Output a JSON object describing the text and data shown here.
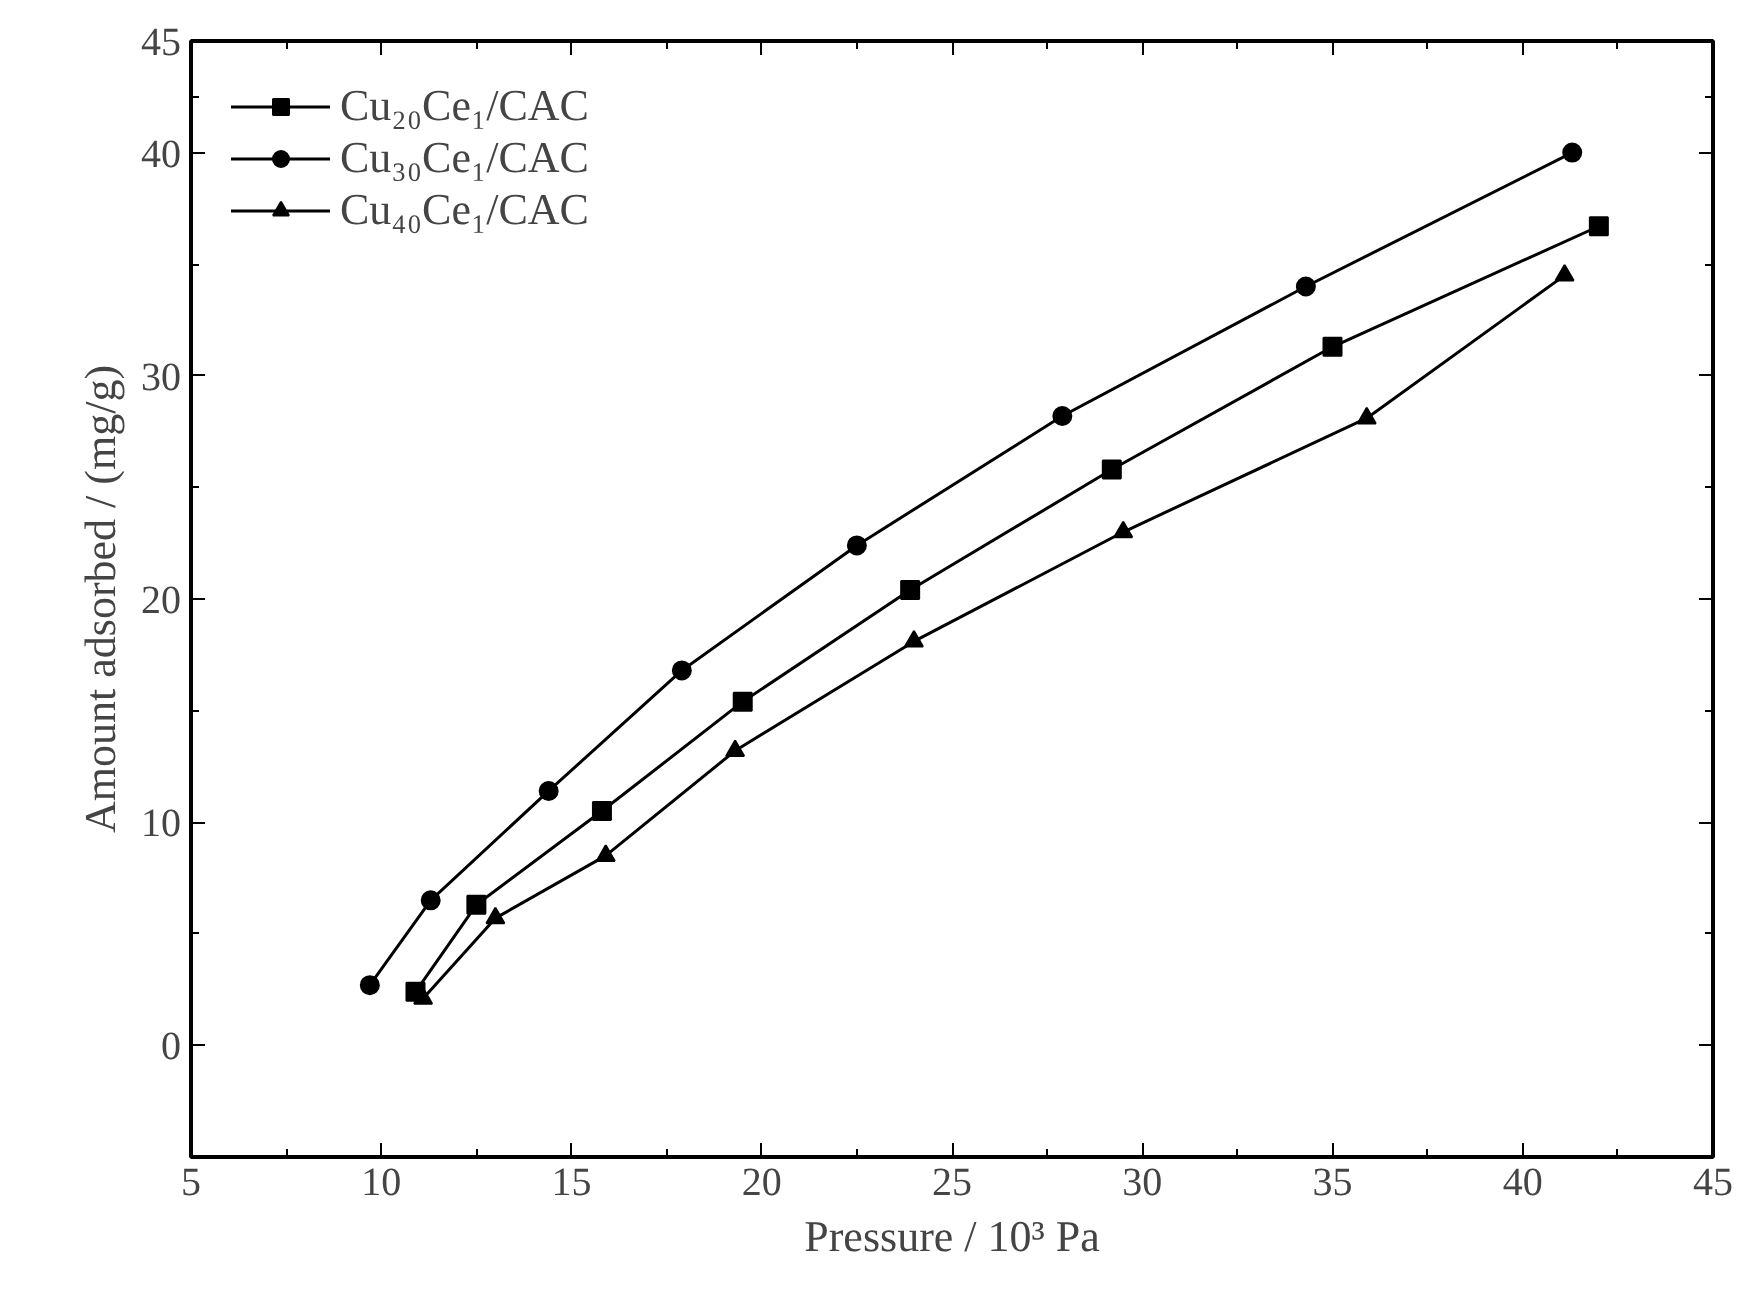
{
  "chart_data": {
    "type": "line",
    "xlabel": "Pressure / 10³ Pa",
    "ylabel": "Amount adsorbed / (mg/g)",
    "xlim": [
      5,
      45
    ],
    "xticks": [
      5,
      10,
      15,
      20,
      25,
      30,
      35,
      40,
      45
    ],
    "ylim": [
      -5,
      45
    ],
    "yticks": [
      0,
      10,
      20,
      30,
      40,
      45
    ],
    "grid": false,
    "legend": "top left",
    "series": [
      {
        "name": "Cu₂₀Ce₁/CAC",
        "color": "#000000",
        "marker": "square",
        "x": [
          10.9,
          12.5,
          15.8,
          19.5,
          23.9,
          29.2,
          35.0,
          42.0
        ],
        "values": [
          2.4,
          6.3,
          10.5,
          15.4,
          20.4,
          25.8,
          31.3,
          36.7
        ]
      },
      {
        "name": "Cu₃₀Ce₁/CAC",
        "color": "#000000",
        "marker": "circle",
        "x": [
          9.7,
          11.3,
          14.4,
          17.9,
          22.5,
          27.9,
          34.3,
          41.3
        ],
        "values": [
          2.7,
          6.5,
          11.4,
          16.8,
          22.4,
          28.2,
          34.0,
          40.0
        ]
      },
      {
        "name": "Cu₄₀Ce₁/CAC",
        "color": "#000000",
        "marker": "triangle",
        "x": [
          11.1,
          13.0,
          15.9,
          19.3,
          24.0,
          29.5,
          35.9,
          41.1
        ],
        "values": [
          2.1,
          5.7,
          8.5,
          13.2,
          18.1,
          23.0,
          28.1,
          34.5
        ]
      }
    ]
  }
}
